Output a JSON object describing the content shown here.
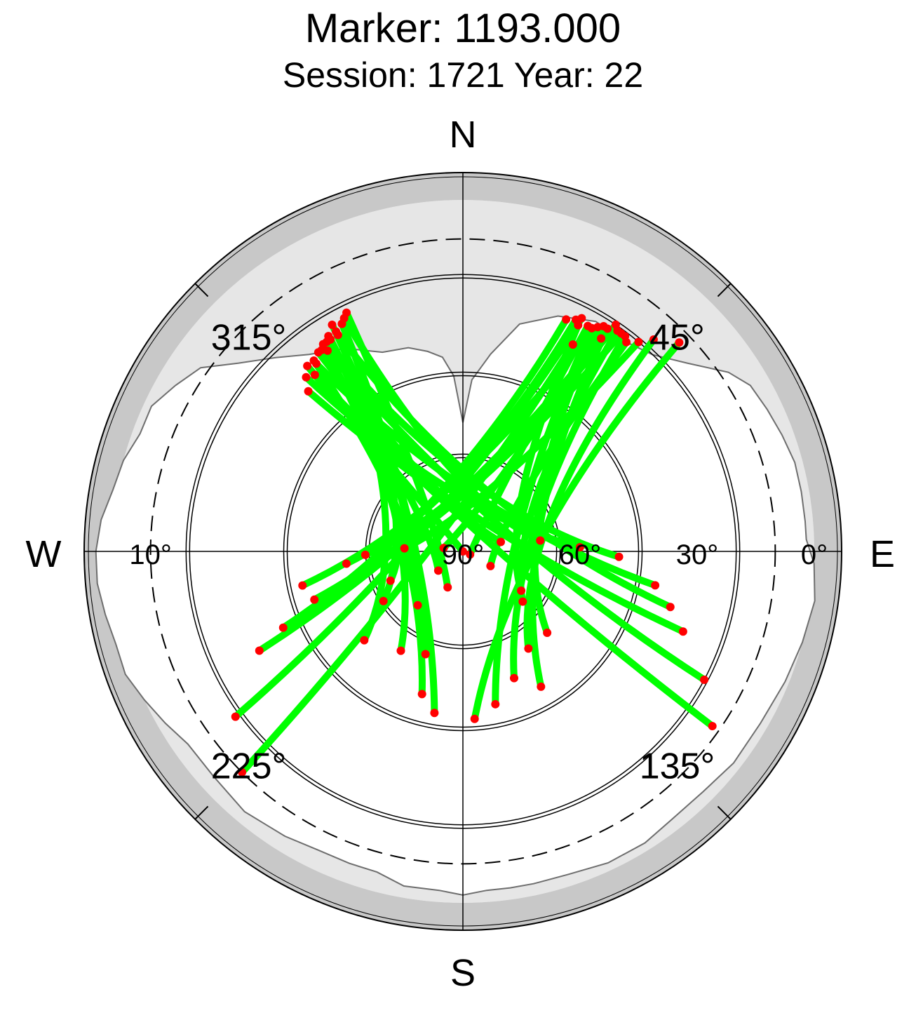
{
  "chart_data": {
    "type": "scatter",
    "subtype": "polar-skyplot",
    "title": "Marker: 1193.000",
    "subtitle": "Session: 1721 Year: 22",
    "cardinal_labels": {
      "north": "N",
      "south": "S",
      "east": "E",
      "west": "W"
    },
    "azimuth_labels": [
      {
        "text": "45°",
        "azimuth": 45
      },
      {
        "text": "135°",
        "azimuth": 135
      },
      {
        "text": "225°",
        "azimuth": 225
      },
      {
        "text": "315°",
        "azimuth": 315
      }
    ],
    "elevation_labels": [
      {
        "text": "0°",
        "elevation": 0,
        "side": "east"
      },
      {
        "text": "30°",
        "elevation": 30,
        "side": "east"
      },
      {
        "text": "60°",
        "elevation": 60,
        "side": "east"
      },
      {
        "text": "90°",
        "elevation": 90,
        "side": "center"
      },
      {
        "text": "10°",
        "elevation": 10,
        "side": "west"
      }
    ],
    "elevation_range": [
      -7,
      90
    ],
    "cutoff_elevation_dashed": 10,
    "elevation_circles": [
      20,
      45,
      66
    ],
    "colors": {
      "track": "#00ff00",
      "endpoint": "#ff0000",
      "below_horizon": "#c8c8c8",
      "horizon_mask": "#e6e6e6",
      "mask_outline": "#6e6e6e",
      "axis": "#000000"
    },
    "horizon_mask": [
      [
        0,
        57
      ],
      [
        3,
        46
      ],
      [
        8,
        39
      ],
      [
        14,
        30
      ],
      [
        22,
        25
      ],
      [
        30,
        22
      ],
      [
        38,
        22
      ],
      [
        44,
        20
      ],
      [
        50,
        15
      ],
      [
        56,
        8
      ],
      [
        60,
        5
      ],
      [
        65,
        4
      ],
      [
        70,
        3
      ],
      [
        75,
        2
      ],
      [
        80,
        2
      ],
      [
        85,
        2
      ],
      [
        88,
        2
      ],
      [
        92,
        0
      ],
      [
        98,
        -1
      ],
      [
        105,
        0
      ],
      [
        112,
        1
      ],
      [
        120,
        2
      ],
      [
        128,
        2
      ],
      [
        135,
        3
      ],
      [
        142,
        3
      ],
      [
        148,
        2
      ],
      [
        155,
        2
      ],
      [
        162,
        3
      ],
      [
        168,
        3
      ],
      [
        172,
        3
      ],
      [
        176,
        3
      ],
      [
        180,
        2
      ],
      [
        184,
        3
      ],
      [
        190,
        3
      ],
      [
        195,
        5
      ],
      [
        200,
        5
      ],
      [
        206,
        5
      ],
      [
        212,
        4
      ],
      [
        220,
        3
      ],
      [
        228,
        4
      ],
      [
        235,
        4
      ],
      [
        240,
        2
      ],
      [
        245,
        0
      ],
      [
        250,
        -2
      ],
      [
        255,
        -2
      ],
      [
        260,
        -3
      ],
      [
        265,
        -4
      ],
      [
        270,
        -4
      ],
      [
        275,
        -3
      ],
      [
        280,
        -1
      ],
      [
        285,
        0
      ],
      [
        290,
        2
      ],
      [
        295,
        2
      ],
      [
        300,
        5
      ],
      [
        305,
        8
      ],
      [
        310,
        15
      ],
      [
        316,
        21
      ],
      [
        322,
        26
      ],
      [
        330,
        30
      ],
      [
        338,
        35
      ],
      [
        345,
        36
      ],
      [
        350,
        38
      ],
      [
        354,
        40
      ],
      [
        357,
        45
      ],
      [
        360,
        57
      ]
    ],
    "tracks": [
      {
        "start": [
          28,
          30
        ],
        "end": [
          45,
          170
        ]
      },
      {
        "start": [
          27,
          23
        ],
        "end": [
          54,
          162
        ]
      },
      {
        "start": [
          33,
          25
        ],
        "end": [
          64,
          148
        ]
      },
      {
        "start": [
          24,
          25
        ],
        "end": [
          67,
          140
        ]
      },
      {
        "start": [
          36,
          21
        ],
        "end": [
          72,
          130
        ]
      },
      {
        "start": [
          30,
          24
        ],
        "end": [
          78,
          132
        ]
      },
      {
        "start": [
          26,
          24
        ],
        "end": [
          84,
          120
        ]
      },
      {
        "start": [
          34,
          20
        ],
        "end": [
          88,
          115
        ]
      },
      {
        "start": [
          40,
          20
        ],
        "end": [
          93,
          105
        ]
      },
      {
        "start": [
          32,
          22
        ],
        "end": [
          100,
          95
        ]
      },
      {
        "start": [
          29,
          24
        ],
        "end": [
          113,
          88
        ]
      },
      {
        "start": [
          38,
          22
        ],
        "end": [
          118,
          82
        ]
      },
      {
        "start": [
          27,
          25
        ],
        "end": [
          124,
          72
        ]
      },
      {
        "start": [
          35,
          21
        ],
        "end": [
          130,
          70
        ]
      },
      {
        "start": [
          31,
          23
        ],
        "end": [
          134,
          60
        ]
      },
      {
        "start": [
          42,
          17
        ],
        "end": [
          146,
          60
        ]
      },
      {
        "start": [
          33,
          22
        ],
        "end": [
          150,
          50
        ]
      },
      {
        "start": [
          37,
          21
        ],
        "end": [
          158,
          55
        ]
      },
      {
        "start": [
          30,
          24
        ],
        "end": [
          168,
          50
        ]
      },
      {
        "start": [
          46,
          13
        ],
        "end": [
          176,
          47
        ]
      },
      {
        "start": [
          332,
          24
        ],
        "end": [
          190,
          48
        ]
      },
      {
        "start": [
          326,
          26
        ],
        "end": [
          196,
          52
        ]
      },
      {
        "start": [
          330,
          23
        ],
        "end": [
          200,
          62
        ]
      },
      {
        "start": [
          334,
          22
        ],
        "end": [
          203,
          80
        ]
      },
      {
        "start": [
          328,
          25
        ],
        "end": [
          212,
          60
        ]
      },
      {
        "start": [
          322,
          28
        ],
        "end": [
          220,
          72
        ]
      },
      {
        "start": [
          330,
          26
        ],
        "end": [
          228,
          56
        ]
      },
      {
        "start": [
          325,
          27
        ],
        "end": [
          232,
          82
        ]
      },
      {
        "start": [
          332,
          24
        ],
        "end": [
          238,
          66
        ]
      },
      {
        "start": [
          320,
          28
        ],
        "end": [
          245,
          90
        ]
      },
      {
        "start": [
          328,
          26
        ],
        "end": [
          248,
          70
        ]
      },
      {
        "start": [
          324,
          27
        ],
        "end": [
          256,
          100
        ]
      },
      {
        "start": [
          333,
          23
        ],
        "end": [
          262,
          110
        ]
      },
      {
        "start": [
          318,
          30
        ],
        "end": [
          268,
          120
        ]
      },
      {
        "start": [
          327,
          26
        ],
        "end": [
          272,
          130
        ]
      },
      {
        "start": [
          322,
          29
        ],
        "end": [
          280,
          140
        ]
      },
      {
        "start": [
          330,
          25
        ],
        "end": [
          285,
          145
        ]
      },
      {
        "start": [
          316,
          33
        ],
        "end": [
          290,
          150
        ]
      },
      {
        "start": [
          326,
          28
        ],
        "end": [
          298,
          160
        ]
      },
      {
        "start": [
          320,
          31
        ],
        "end": [
          305,
          168
        ]
      }
    ]
  }
}
